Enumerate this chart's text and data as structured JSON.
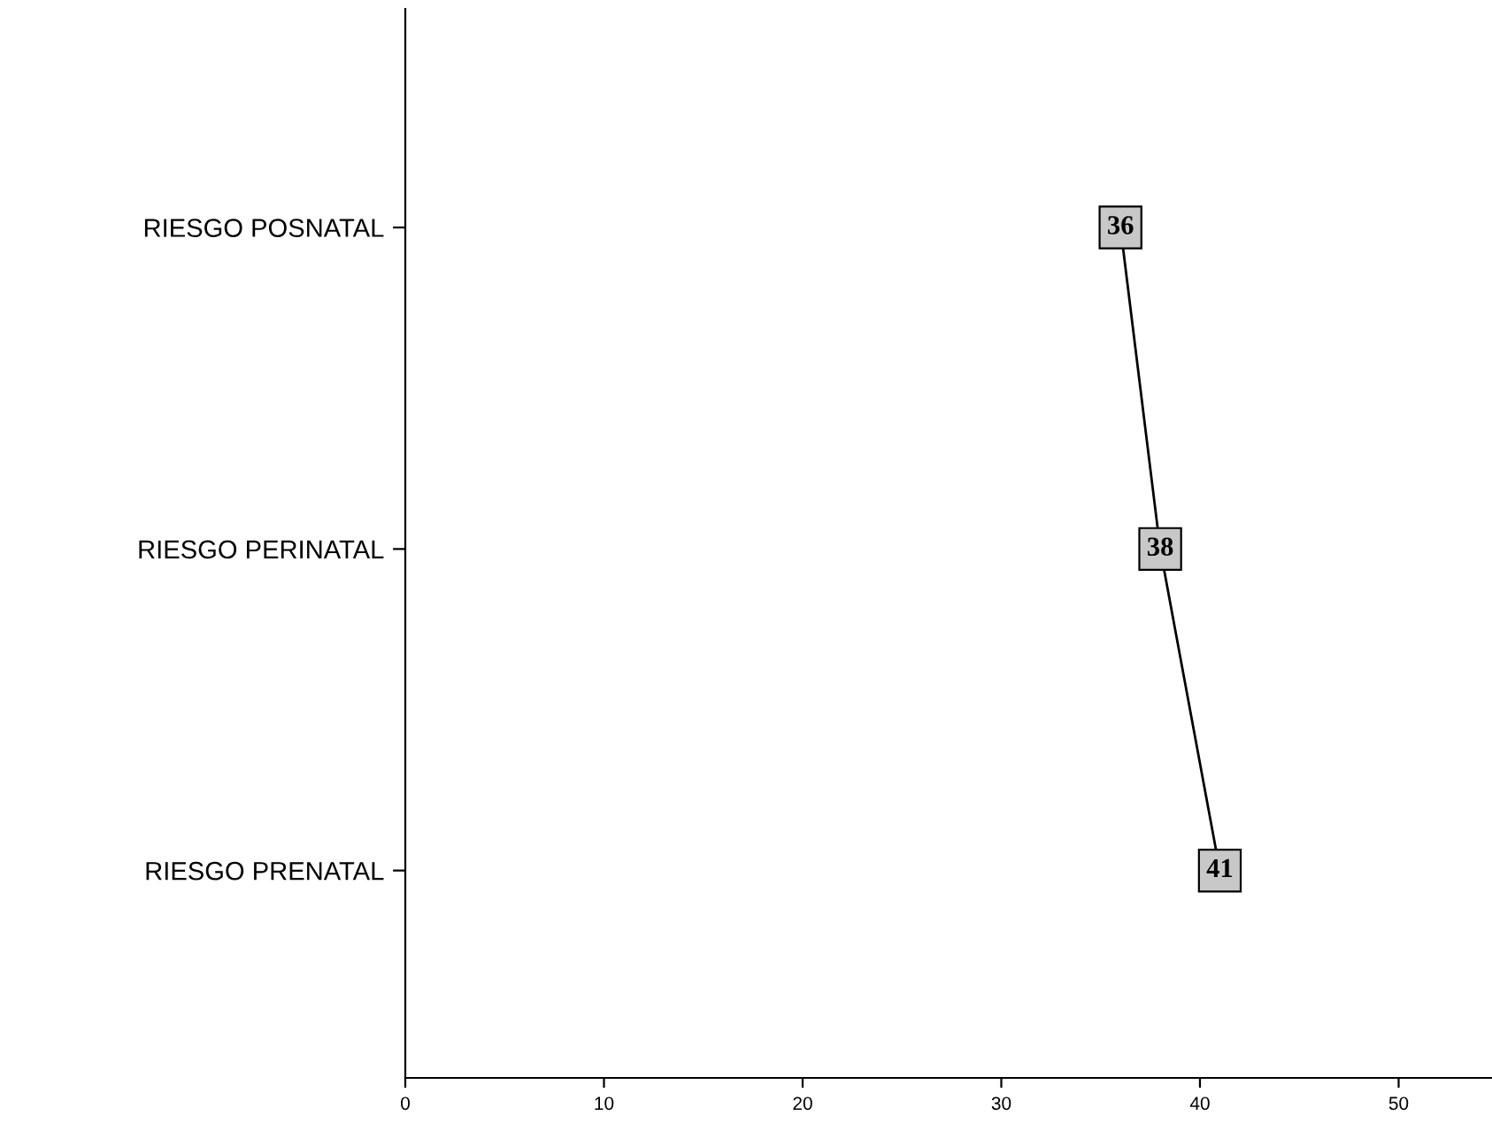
{
  "chart_data": {
    "type": "line",
    "orientation": "horizontal",
    "categories": [
      "RIESGO POSNATAL",
      "RIESGO PERINATAL",
      "RIESGO PRENATAL"
    ],
    "series": [
      {
        "color": "#000000",
        "values": [
          36,
          38,
          41
        ]
      }
    ],
    "xlim": [
      0,
      54.7
    ],
    "xticks": [
      0,
      10,
      20,
      30,
      40,
      50
    ],
    "data_labels": true,
    "marker": "square",
    "line_style": "solid",
    "grid": false,
    "legend": false
  }
}
